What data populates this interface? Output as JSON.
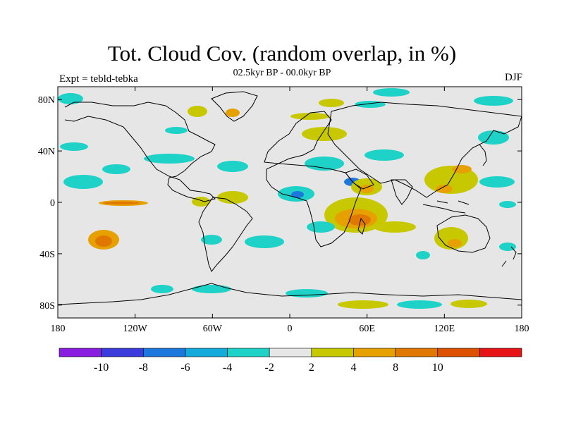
{
  "title": "Tot. Cloud Cov. (random overlap, in %)",
  "subtitle": "02.5kyr BP - 00.0kyr BP",
  "left_label": "Expt = tebld-tebka",
  "right_label": "DJF",
  "lat_ticks": [
    {
      "value": 80,
      "label": "80N"
    },
    {
      "value": 40,
      "label": "40N"
    },
    {
      "value": 0,
      "label": "0"
    },
    {
      "value": -40,
      "label": "40S"
    },
    {
      "value": -80,
      "label": "80S"
    }
  ],
  "lon_ticks": [
    {
      "value": -180,
      "label": "180"
    },
    {
      "value": -120,
      "label": "120W"
    },
    {
      "value": -60,
      "label": "60W"
    },
    {
      "value": 0,
      "label": "0"
    },
    {
      "value": 60,
      "label": "60E"
    },
    {
      "value": 120,
      "label": "120E"
    },
    {
      "value": 180,
      "label": "180"
    }
  ],
  "colorbar": {
    "colors": [
      "#8a1ee0",
      "#3c3cdc",
      "#1c78dc",
      "#14aadc",
      "#1ed2c8",
      "#e6e6e6",
      "#c8c800",
      "#e6a000",
      "#e07800",
      "#dc5000",
      "#e61414"
    ],
    "labels": [
      "-10",
      "-8",
      "-6",
      "-4",
      "-2",
      "2",
      "4",
      "8",
      "10"
    ]
  },
  "colors": {
    "background": "#e6e6e6",
    "coast": "#000000"
  }
}
